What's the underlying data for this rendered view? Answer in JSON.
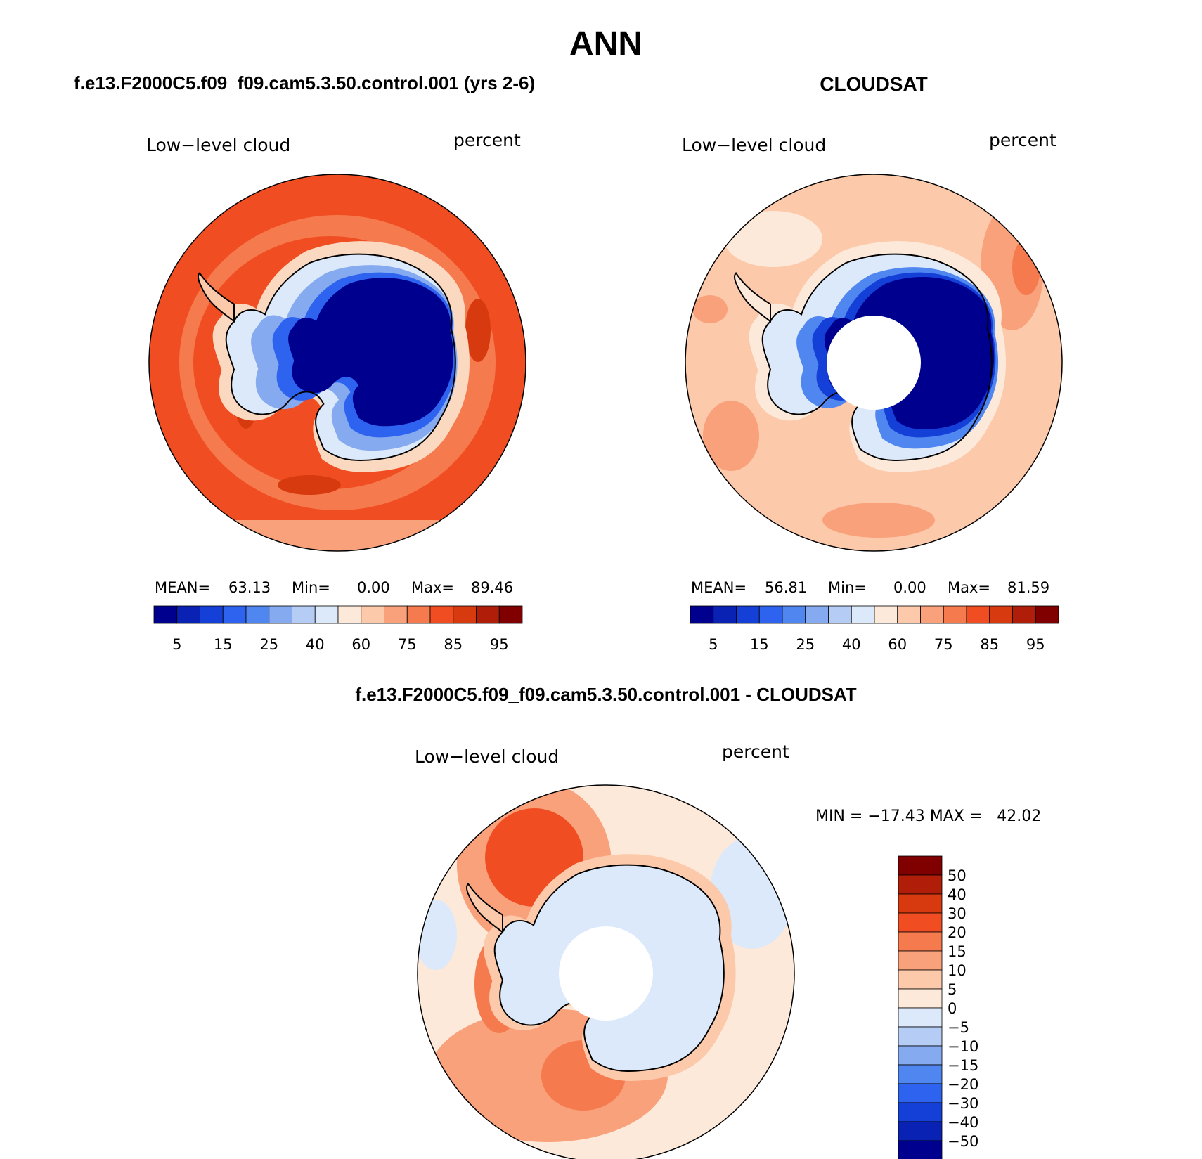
{
  "chart_data": [
    {
      "type": "heatmap",
      "projection": "south-polar-stereographic",
      "title": "f.e13.F2000C5.f09_f09.cam5.3.50.control.001 (yrs 2-6)",
      "subtitle_left": "Low−level cloud",
      "subtitle_right": "percent",
      "stats": {
        "mean_label": "MEAN=",
        "mean": "63.13",
        "min_label": "Min=",
        "min": "0.00",
        "max_label": "Max=",
        "max": "89.46"
      },
      "colorbar": {
        "orientation": "horizontal",
        "colors": [
          "#00008f",
          "#0a22b4",
          "#1540d8",
          "#2e63f0",
          "#4f86f0",
          "#85aaf0",
          "#b5cdf5",
          "#dce9fa",
          "#fde9d9",
          "#fcc9aa",
          "#f9a17b",
          "#f57a4d",
          "#f04e22",
          "#d83a10",
          "#b01e0a",
          "#800000"
        ],
        "tick_labels": [
          "5",
          "15",
          "25",
          "40",
          "60",
          "75",
          "85",
          "95"
        ]
      },
      "field": {
        "ocean_outer": "#f35d28",
        "ocean_mid": "#f36c3c",
        "continent_coast": "#fbd8c0",
        "interior_min": "#00008f"
      }
    },
    {
      "type": "heatmap",
      "projection": "south-polar-stereographic",
      "title": "CLOUDSAT",
      "subtitle_left": "Low−level cloud",
      "subtitle_right": "percent",
      "stats": {
        "mean_label": "MEAN=",
        "mean": "56.81",
        "min_label": "Min=",
        "min": "0.00",
        "max_label": "Max=",
        "max": "81.59"
      },
      "colorbar": {
        "orientation": "horizontal",
        "colors": [
          "#00008f",
          "#0a22b4",
          "#1540d8",
          "#2e63f0",
          "#4f86f0",
          "#85aaf0",
          "#b5cdf5",
          "#dce9fa",
          "#fde9d9",
          "#fcc9aa",
          "#f9a17b",
          "#f57a4d",
          "#f04e22",
          "#d83a10",
          "#b01e0a",
          "#800000"
        ],
        "tick_labels": [
          "5",
          "15",
          "25",
          "40",
          "60",
          "75",
          "85",
          "95"
        ]
      },
      "field": {
        "ocean": "#fcc9aa",
        "ocean_patches": "#f9a17b",
        "continent_coast": "#dce9fa",
        "interior_min": "#00008f",
        "missing_pole": "#ffffff"
      }
    },
    {
      "type": "heatmap",
      "projection": "south-polar-stereographic",
      "title": "f.e13.F2000C5.f09_f09.cam5.3.50.control.001 - CLOUDSAT",
      "subtitle_left": "Low−level cloud",
      "subtitle_right": "percent",
      "stats": {
        "text": "MIN = −17.43 MAX =   42.02"
      },
      "colorbar": {
        "orientation": "vertical",
        "colors_top_to_bottom": [
          "#800000",
          "#b01e0a",
          "#d83a10",
          "#f04e22",
          "#f57a4d",
          "#f9a17b",
          "#fcc9aa",
          "#fde9d9",
          "#dce9fa",
          "#b5cdf5",
          "#85aaf0",
          "#4f86f0",
          "#2e63f0",
          "#1540d8",
          "#0a22b4",
          "#00008f"
        ],
        "tick_labels": [
          "50",
          "40",
          "30",
          "20",
          "15",
          "10",
          "5",
          "0",
          "−5",
          "−10",
          "−15",
          "−20",
          "−30",
          "−40",
          "−50"
        ]
      },
      "field": {
        "ocean": "#fcc9aa",
        "ocean_patches": "#f9a17b",
        "land_ice": "#dce9fa",
        "missing_pole": "#ffffff"
      }
    }
  ],
  "figure": {
    "season_title": "ANN"
  }
}
